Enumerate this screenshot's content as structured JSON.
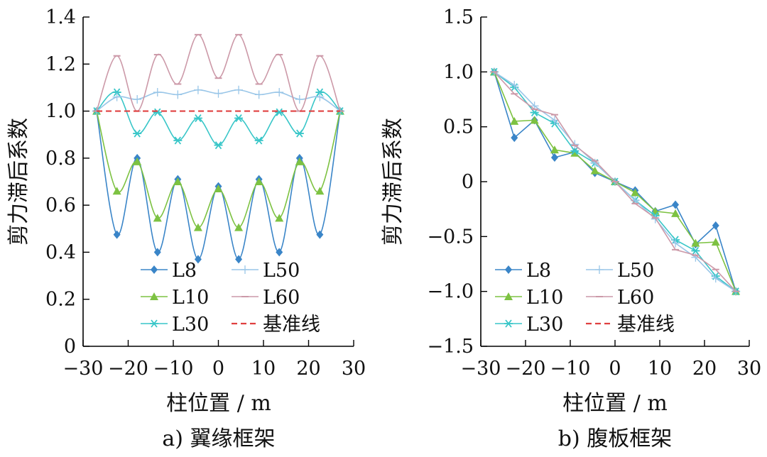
{
  "chart_data": [
    {
      "type": "line",
      "caption": "a)  翼缘框架",
      "xlabel": "柱位置 / m",
      "ylabel": "剪力滞后系数",
      "xlim": [
        -30,
        30
      ],
      "ylim": [
        0,
        1.4
      ],
      "xticks": [
        -30,
        -20,
        -10,
        0,
        10,
        20,
        30
      ],
      "xtick_labels": [
        "−30",
        "−20",
        "−10",
        "0",
        "10",
        "20",
        "30"
      ],
      "yticks": [
        0,
        0.2,
        0.4,
        0.6,
        0.8,
        1.0,
        1.2,
        1.4
      ],
      "ytick_labels": [
        "0",
        "0.2",
        "0.4",
        "0.6",
        "0.8",
        "1.0",
        "1.2",
        "1.4"
      ],
      "legend_position": "bottom-center",
      "smooth": true,
      "series": [
        {
          "name": "L8",
          "color": "#3a85c8",
          "marker": "diamond",
          "x": [
            -27,
            -22.5,
            -18,
            -13.5,
            -9,
            -4.5,
            0,
            4.5,
            9,
            13.5,
            18,
            22.5,
            27
          ],
          "y": [
            1.0,
            0.475,
            0.8,
            0.4,
            0.71,
            0.37,
            0.68,
            0.37,
            0.71,
            0.4,
            0.8,
            0.475,
            1.0
          ]
        },
        {
          "name": "L10",
          "color": "#7dc242",
          "marker": "triangle",
          "x": [
            -27,
            -22.5,
            -18,
            -13.5,
            -9,
            -4.5,
            0,
            4.5,
            9,
            13.5,
            18,
            22.5,
            27
          ],
          "y": [
            1.0,
            0.66,
            0.785,
            0.545,
            0.7,
            0.505,
            0.67,
            0.505,
            0.7,
            0.545,
            0.785,
            0.66,
            1.0
          ]
        },
        {
          "name": "L30",
          "color": "#38c6c8",
          "marker": "asterisk",
          "x": [
            -27,
            -22.5,
            -18,
            -13.5,
            -9,
            -4.5,
            0,
            4.5,
            9,
            13.5,
            18,
            22.5,
            27
          ],
          "y": [
            1.0,
            1.08,
            0.905,
            0.995,
            0.875,
            0.97,
            0.855,
            0.97,
            0.875,
            0.995,
            0.905,
            1.08,
            1.0
          ]
        },
        {
          "name": "L50",
          "color": "#99c6e8",
          "marker": "plus",
          "x": [
            -27,
            -22.5,
            -18,
            -13.5,
            -9,
            -4.5,
            0,
            4.5,
            9,
            13.5,
            18,
            22.5,
            27
          ],
          "y": [
            1.0,
            1.06,
            1.05,
            1.08,
            1.07,
            1.09,
            1.075,
            1.09,
            1.07,
            1.08,
            1.05,
            1.06,
            1.0
          ]
        },
        {
          "name": "L60",
          "color": "#cc99a8",
          "marker": "dash",
          "x": [
            -27,
            -22.5,
            -18,
            -13.5,
            -9,
            -4.5,
            0,
            4.5,
            9,
            13.5,
            18,
            22.5,
            27
          ],
          "y": [
            1.0,
            1.235,
            1.0,
            1.24,
            1.115,
            1.325,
            1.14,
            1.325,
            1.115,
            1.24,
            1.0,
            1.235,
            1.0
          ]
        },
        {
          "name": "基准线",
          "color": "#e04040",
          "marker": "none",
          "dashed": true,
          "x": [
            -27,
            27
          ],
          "y": [
            1.0,
            1.0
          ]
        }
      ]
    },
    {
      "type": "line",
      "caption": "b)  腹板框架",
      "xlabel": "柱位置 / m",
      "ylabel": "剪力滞后系数",
      "xlim": [
        -30,
        30
      ],
      "ylim": [
        -1.5,
        1.5
      ],
      "xticks": [
        -30,
        -20,
        -10,
        0,
        10,
        20,
        30
      ],
      "xtick_labels": [
        "−30",
        "−20",
        "−10",
        "0",
        "10",
        "20",
        "30"
      ],
      "yticks": [
        -1.5,
        -1.0,
        -0.5,
        0,
        0.5,
        1.0,
        1.5
      ],
      "ytick_labels": [
        "−1.5",
        "−1.0",
        "−0.5",
        "0",
        "0.5",
        "1.0",
        "1.5"
      ],
      "legend_position": "bottom-left",
      "smooth": false,
      "series": [
        {
          "name": "L8",
          "color": "#3a85c8",
          "marker": "diamond",
          "x": [
            -27,
            -22.5,
            -18,
            -13.5,
            -9,
            -4.5,
            0,
            4.5,
            9,
            13.5,
            18,
            22.5,
            27
          ],
          "y": [
            1.0,
            0.4,
            0.56,
            0.22,
            0.27,
            0.08,
            0.0,
            -0.08,
            -0.27,
            -0.21,
            -0.57,
            -0.4,
            -1.0
          ]
        },
        {
          "name": "L10",
          "color": "#7dc242",
          "marker": "triangle",
          "x": [
            -27,
            -22.5,
            -18,
            -13.5,
            -9,
            -4.5,
            0,
            4.5,
            9,
            13.5,
            18,
            22.5,
            27
          ],
          "y": [
            1.0,
            0.55,
            0.56,
            0.29,
            0.26,
            0.1,
            0.0,
            -0.1,
            -0.27,
            -0.29,
            -0.56,
            -0.55,
            -1.0
          ]
        },
        {
          "name": "L30",
          "color": "#38c6c8",
          "marker": "asterisk",
          "x": [
            -27,
            -22.5,
            -18,
            -13.5,
            -9,
            -4.5,
            0,
            4.5,
            9,
            13.5,
            18,
            22.5,
            27
          ],
          "y": [
            1.0,
            0.86,
            0.63,
            0.53,
            0.28,
            0.17,
            0.0,
            -0.17,
            -0.31,
            -0.53,
            -0.63,
            -0.86,
            -1.0
          ]
        },
        {
          "name": "L50",
          "color": "#99c6e8",
          "marker": "plus",
          "x": [
            -27,
            -22.5,
            -18,
            -13.5,
            -9,
            -4.5,
            0,
            4.5,
            9,
            13.5,
            18,
            22.5,
            27
          ],
          "y": [
            1.0,
            0.88,
            0.69,
            0.56,
            0.34,
            0.17,
            0.0,
            -0.17,
            -0.34,
            -0.56,
            -0.69,
            -0.88,
            -1.0
          ]
        },
        {
          "name": "L60",
          "color": "#cc99a8",
          "marker": "dash",
          "x": [
            -27,
            -22.5,
            -18,
            -13.5,
            -9,
            -4.5,
            0,
            4.5,
            9,
            13.5,
            18,
            22.5,
            27
          ],
          "y": [
            1.0,
            0.8,
            0.66,
            0.61,
            0.33,
            0.19,
            0.0,
            -0.2,
            -0.33,
            -0.62,
            -0.67,
            -0.8,
            -1.0
          ]
        },
        {
          "name": "基准线",
          "color": "#e04040",
          "marker": "none",
          "dashed": true,
          "x": [],
          "y": []
        }
      ]
    }
  ]
}
